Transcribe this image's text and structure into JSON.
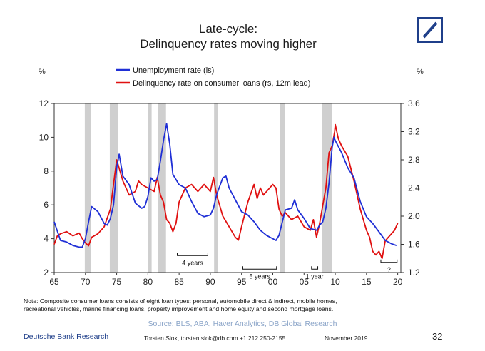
{
  "header": {
    "title_line1": "Late-cycle:",
    "title_line2": "Delinquency rates moving higher"
  },
  "brand": {
    "logo": "deutsche-bank-logo",
    "color": "#1f3f8a"
  },
  "chart_data": {
    "type": "line",
    "title": "Late-cycle: Delinquency rates moving higher",
    "left_axis": {
      "unit": "%",
      "ylim": [
        2,
        12
      ],
      "ticks": [
        "2",
        "4",
        "6",
        "8",
        "10",
        "12"
      ]
    },
    "right_axis": {
      "unit": "%",
      "ylim": [
        1.2,
        3.6
      ],
      "ticks": [
        "1.2",
        "1.6",
        "2.0",
        "2.4",
        "2.8",
        "3.2",
        "3.6"
      ]
    },
    "x_axis": {
      "xlim": [
        1965,
        2020.5
      ],
      "ticks": [
        "65",
        "70",
        "75",
        "80",
        "85",
        "90",
        "95",
        "00",
        "05",
        "10",
        "15",
        "20"
      ]
    },
    "recessions": [
      [
        1969.9,
        1970.9
      ],
      [
        1973.9,
        1975.2
      ],
      [
        1980.0,
        1980.6
      ],
      [
        1981.6,
        1982.9
      ],
      [
        1990.6,
        1991.2
      ],
      [
        2001.2,
        2001.9
      ],
      [
        2007.9,
        2009.5
      ]
    ],
    "series": [
      {
        "name": "Unemployment rate (ls)",
        "axis": "left",
        "color": "#1f2fd6",
        "x": [
          1965,
          1966,
          1967,
          1968,
          1969,
          1969.5,
          1970,
          1970.5,
          1971,
          1972,
          1973,
          1973.5,
          1974,
          1974.5,
          1975,
          1975.4,
          1976,
          1977,
          1978,
          1979,
          1979.5,
          1980,
          1980.5,
          1981,
          1981.5,
          1982,
          1982.5,
          1983,
          1983.5,
          1984,
          1985,
          1986,
          1987,
          1988,
          1989,
          1990,
          1990.5,
          1991,
          1992,
          1992.5,
          1993,
          1994,
          1995,
          1996,
          1997,
          1998,
          1999,
          2000,
          2000.5,
          2001,
          2002,
          2003,
          2003.5,
          2004,
          2005,
          2006,
          2007,
          2007.5,
          2008,
          2008.5,
          2009,
          2009.5,
          2009.8,
          2010,
          2011,
          2012,
          2013,
          2014,
          2015,
          2016,
          2017,
          2018,
          2019,
          2019.8
        ],
        "values": [
          5.0,
          3.9,
          3.8,
          3.6,
          3.5,
          3.5,
          4.0,
          5.0,
          5.9,
          5.6,
          4.9,
          4.8,
          5.2,
          6.0,
          8.2,
          9.0,
          7.7,
          7.2,
          6.1,
          5.8,
          5.9,
          6.5,
          7.6,
          7.4,
          7.5,
          8.6,
          9.8,
          10.8,
          9.6,
          7.8,
          7.2,
          7.0,
          6.2,
          5.5,
          5.3,
          5.4,
          5.8,
          6.6,
          7.6,
          7.7,
          7.0,
          6.3,
          5.6,
          5.4,
          5.0,
          4.5,
          4.2,
          4.0,
          3.9,
          4.2,
          5.7,
          5.8,
          6.3,
          5.7,
          5.2,
          4.6,
          4.5,
          4.8,
          5.0,
          5.8,
          7.3,
          9.4,
          10.0,
          9.8,
          9.1,
          8.2,
          7.6,
          6.2,
          5.3,
          4.9,
          4.4,
          3.9,
          3.7,
          3.6
        ]
      },
      {
        "name": "Delinquency rate on consumer loans (rs, 12m lead)",
        "axis": "right",
        "color": "#e01010",
        "x": [
          1965,
          1965.5,
          1966,
          1967,
          1968,
          1969,
          1969.5,
          1970,
          1970.5,
          1971,
          1972,
          1973,
          1974,
          1975,
          1976,
          1977,
          1978,
          1978.5,
          1979,
          1980,
          1981,
          1981.5,
          1982,
          1982.5,
          1983,
          1983.5,
          1984,
          1984.5,
          1985,
          1986,
          1987,
          1988,
          1989,
          1990,
          1990.5,
          1991,
          1992,
          1993,
          1994,
          1994.5,
          1995,
          1996,
          1997,
          1997.5,
          1998,
          1998.5,
          1999,
          2000,
          2000.5,
          2001,
          2001.5,
          2002,
          2003,
          2004,
          2005,
          2006,
          2006.5,
          2007,
          2007.5,
          2008,
          2008.5,
          2009,
          2009.5,
          2009.9,
          2010,
          2010.5,
          2011,
          2012,
          2013,
          2014,
          2015,
          2015.5,
          2016,
          2016.5,
          2017,
          2017.5,
          2018,
          2018.5,
          2019,
          2019.5,
          2020
        ],
        "values": [
          1.6,
          1.72,
          1.75,
          1.78,
          1.72,
          1.76,
          1.68,
          1.62,
          1.58,
          1.7,
          1.75,
          1.85,
          2.1,
          2.8,
          2.5,
          2.3,
          2.35,
          2.5,
          2.45,
          2.4,
          2.35,
          2.55,
          2.3,
          2.2,
          1.95,
          1.9,
          1.78,
          1.9,
          2.2,
          2.4,
          2.45,
          2.35,
          2.45,
          2.35,
          2.55,
          2.3,
          2.0,
          1.85,
          1.7,
          1.66,
          1.85,
          2.2,
          2.45,
          2.25,
          2.4,
          2.3,
          2.35,
          2.45,
          2.4,
          2.1,
          2.0,
          2.05,
          1.95,
          2.0,
          1.85,
          1.8,
          1.95,
          1.7,
          1.9,
          2.15,
          2.4,
          2.9,
          3.0,
          3.2,
          3.3,
          3.1,
          3.0,
          2.85,
          2.5,
          2.1,
          1.8,
          1.7,
          1.5,
          1.45,
          1.5,
          1.4,
          1.65,
          1.7,
          1.75,
          1.8,
          1.9
        ]
      }
    ],
    "annotations": [
      {
        "text": "4 years",
        "x1": 1984.7,
        "x2": 1989.6,
        "y": 3.0
      },
      {
        "text": "5 years",
        "x1": 1995.2,
        "x2": 2000.6,
        "y": 2.2
      },
      {
        "text": "1 year",
        "x1": 2006.2,
        "x2": 2007.2,
        "y": 2.2
      },
      {
        "text": "?",
        "x1": 2017.3,
        "x2": 2019.9,
        "y": 2.6
      }
    ]
  },
  "note": {
    "line1": "Note: Composite consumer loans consists of eight loan types: personal, automobile direct & indirect, mobile homes,",
    "line2": "recreational vehicles, marine financing loans, property improvement and home equity and second mortgage loans."
  },
  "source": "Source: BLS, ABA, Haver Analytics, DB Global Research",
  "footer": {
    "brand": "Deutsche Bank Research",
    "author": "Torsten Slok, torsten.slok@db.com  +1 212 250-2155",
    "date": "November 2019",
    "page": "32"
  }
}
